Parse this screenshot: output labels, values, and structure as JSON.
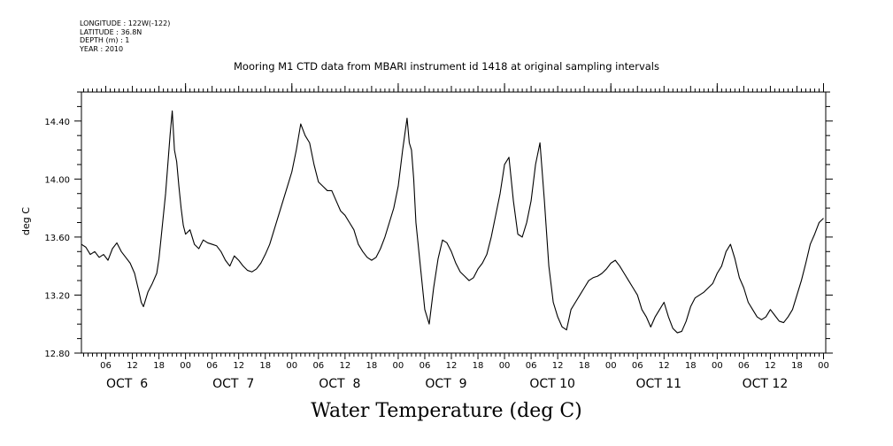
{
  "meta": {
    "longitude": "LONGITUDE : 122W(-122)",
    "latitude": "LATITUDE : 36.8N",
    "depth": "DEPTH (m) : 1",
    "year": "YEAR : 2010"
  },
  "chart_data": {
    "type": "line",
    "title": "Mooring M1 CTD data from MBARI instrument id 1418 at original sampling intervals",
    "xlabel": "Water Temperature (deg C)",
    "ylabel": "deg C",
    "ylim": [
      12.8,
      14.6
    ],
    "yticks": [
      "12.80",
      "13.20",
      "13.60",
      "14.00",
      "14.40"
    ],
    "xlim_hours": [
      0.5,
      168.5
    ],
    "hour_tick_labels": [
      "06",
      "12",
      "18",
      "00",
      "06",
      "12",
      "18",
      "00",
      "06",
      "12",
      "18",
      "00",
      "06",
      "12",
      "18",
      "00",
      "06",
      "12",
      "18",
      "00",
      "06",
      "12",
      "18",
      "00",
      "06",
      "12",
      "18",
      "00"
    ],
    "day_labels": [
      "OCT  6",
      "OCT  7",
      "OCT  8",
      "OCT  9",
      "OCT 10",
      "OCT 11",
      "OCT 12"
    ],
    "grid": false,
    "series": [
      {
        "x_hours_since_oct6_00": [
          0.5,
          1.5,
          2.5,
          3.5,
          4.5,
          5.5,
          6.5,
          7.5,
          8.5,
          9.5,
          10.5,
          11.5,
          12.5,
          13.5,
          14.0,
          14.5,
          15.5,
          16.5,
          17.5,
          18.0,
          18.5,
          19.0,
          19.5,
          20.0,
          20.5,
          21.0,
          21.5,
          22.0,
          22.5,
          23.0,
          23.5,
          24.0,
          25.0,
          26.0,
          27.0,
          28.0,
          29.0,
          30.0,
          31.0,
          32.0,
          33.0,
          34.0,
          35.0,
          36.0,
          37.0,
          38.0,
          39.0,
          40.0,
          41.0,
          42.0,
          43.0,
          44.0,
          45.0,
          46.0,
          47.0,
          48.0,
          49.0,
          50.0,
          51.0,
          52.0,
          53.0,
          54.0,
          55.0,
          56.0,
          57.0,
          58.0,
          59.0,
          60.0,
          61.0,
          62.0,
          63.0,
          64.0,
          65.0,
          66.0,
          67.0,
          68.0,
          69.0,
          70.0,
          71.0,
          72.0,
          73.0,
          74.0,
          74.5,
          75.0,
          75.5,
          76.0,
          77.0,
          78.0,
          79.0,
          80.0,
          81.0,
          82.0,
          83.0,
          84.0,
          85.0,
          86.0,
          87.0,
          88.0,
          89.0,
          90.0,
          91.0,
          92.0,
          93.0,
          94.0,
          95.0,
          96.0,
          97.0,
          98.0,
          99.0,
          100.0,
          101.0,
          102.0,
          103.0,
          104.0,
          105.0,
          106.0,
          107.0,
          108.0,
          109.0,
          110.0,
          111.0,
          112.0,
          113.0,
          114.0,
          115.0,
          116.0,
          117.0,
          118.0,
          119.0,
          120.0,
          121.0,
          122.0,
          123.0,
          124.0,
          125.0,
          126.0,
          127.0,
          128.0,
          129.0,
          130.0,
          131.0,
          132.0,
          133.0,
          134.0,
          135.0,
          136.0,
          137.0,
          138.0,
          139.0,
          140.0,
          141.0,
          142.0,
          143.0,
          144.0,
          145.0,
          146.0,
          147.0,
          148.0,
          149.0,
          150.0,
          151.0,
          152.0,
          153.0,
          154.0,
          155.0,
          156.0,
          157.0,
          158.0,
          159.0,
          160.0,
          161.0,
          162.0,
          163.0,
          164.0,
          165.0,
          166.0,
          167.0,
          168.0
        ],
        "values": [
          13.55,
          13.53,
          13.48,
          13.5,
          13.46,
          13.48,
          13.44,
          13.52,
          13.56,
          13.5,
          13.46,
          13.42,
          13.35,
          13.22,
          13.15,
          13.12,
          13.22,
          13.28,
          13.35,
          13.45,
          13.6,
          13.75,
          13.9,
          14.1,
          14.3,
          14.47,
          14.2,
          14.12,
          13.95,
          13.8,
          13.68,
          13.62,
          13.65,
          13.55,
          13.52,
          13.58,
          13.56,
          13.55,
          13.54,
          13.5,
          13.44,
          13.4,
          13.47,
          13.44,
          13.4,
          13.37,
          13.36,
          13.38,
          13.42,
          13.48,
          13.55,
          13.65,
          13.75,
          13.85,
          13.95,
          14.05,
          14.2,
          14.38,
          14.3,
          14.25,
          14.1,
          13.98,
          13.95,
          13.92,
          13.92,
          13.85,
          13.78,
          13.75,
          13.7,
          13.65,
          13.55,
          13.5,
          13.46,
          13.44,
          13.46,
          13.52,
          13.6,
          13.7,
          13.8,
          13.95,
          14.2,
          14.42,
          14.25,
          14.2,
          14.0,
          13.7,
          13.4,
          13.1,
          13.0,
          13.25,
          13.45,
          13.58,
          13.56,
          13.5,
          13.42,
          13.36,
          13.33,
          13.3,
          13.32,
          13.38,
          13.42,
          13.48,
          13.6,
          13.75,
          13.9,
          14.1,
          14.15,
          13.85,
          13.62,
          13.6,
          13.7,
          13.85,
          14.1,
          14.25,
          13.85,
          13.4,
          13.15,
          13.05,
          12.98,
          12.96,
          13.1,
          13.15,
          13.2,
          13.25,
          13.3,
          13.32,
          13.33,
          13.35,
          13.38,
          13.42,
          13.44,
          13.4,
          13.35,
          13.3,
          13.25,
          13.2,
          13.1,
          13.05,
          12.98,
          13.05,
          13.1,
          13.15,
          13.05,
          12.97,
          12.94,
          12.95,
          13.02,
          13.12,
          13.18,
          13.2,
          13.22,
          13.25,
          13.28,
          13.35,
          13.4,
          13.5,
          13.55,
          13.45,
          13.32,
          13.25,
          13.15,
          13.1,
          13.05,
          13.03,
          13.05,
          13.1,
          13.06,
          13.02,
          13.01,
          13.05,
          13.1,
          13.2,
          13.3,
          13.42,
          13.55,
          13.62,
          13.7,
          13.73,
          13.72,
          13.7
        ]
      }
    ]
  }
}
